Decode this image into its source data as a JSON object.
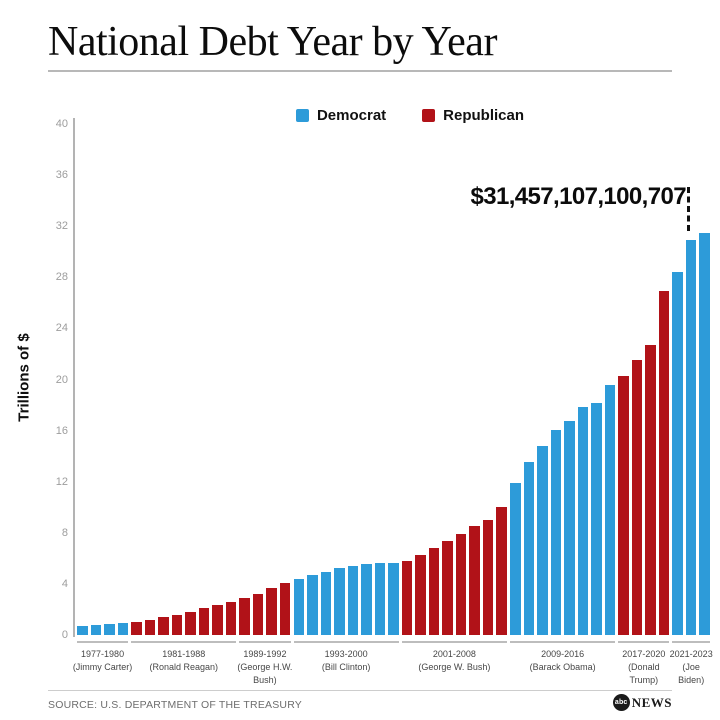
{
  "header": {
    "title": "National Debt Year by Year"
  },
  "legend": [
    {
      "label": "Democrat",
      "color": "#2d9bd9"
    },
    {
      "label": "Republican",
      "color": "#b11218"
    }
  ],
  "annotation": {
    "text": "$31,457,107,100,707"
  },
  "chart_data": {
    "type": "bar",
    "title": "National Debt Year by Year",
    "xlabel": "",
    "ylabel": "Trillions of $",
    "ylim": [
      0,
      40
    ],
    "yticks": [
      0,
      4,
      8,
      12,
      16,
      20,
      24,
      28,
      32,
      36,
      40
    ],
    "grid": false,
    "legend_position": "top",
    "annotation": "$31,457,107,100,707",
    "party_colors": {
      "Democrat": "#2d9bd9",
      "Republican": "#b11218"
    },
    "groups": [
      {
        "years": "1977-1980",
        "president": "(Jimmy Carter)",
        "party": "Democrat",
        "values": [
          0.7,
          0.77,
          0.83,
          0.91
        ]
      },
      {
        "years": "1981-1988",
        "president": "(Ronald Reagan)",
        "party": "Republican",
        "values": [
          1.0,
          1.14,
          1.38,
          1.57,
          1.82,
          2.13,
          2.35,
          2.6
        ]
      },
      {
        "years": "1989-1992",
        "president": "(George H.W.\nBush)",
        "party": "Republican",
        "values": [
          2.86,
          3.23,
          3.67,
          4.06
        ]
      },
      {
        "years": "1993-2000",
        "president": "(Bill Clinton)",
        "party": "Democrat",
        "values": [
          4.41,
          4.69,
          4.97,
          5.22,
          5.41,
          5.53,
          5.66,
          5.67
        ]
      },
      {
        "years": "2001-2008",
        "president": "(George W. Bush)",
        "party": "Republican",
        "values": [
          5.81,
          6.23,
          6.78,
          7.38,
          7.93,
          8.51,
          9.01,
          10.02
        ]
      },
      {
        "years": "2009-2016",
        "president": "(Barack Obama)",
        "party": "Democrat",
        "values": [
          11.91,
          13.56,
          14.79,
          16.07,
          16.74,
          17.82,
          18.15,
          19.57
        ]
      },
      {
        "years": "2017-2020",
        "president": "(Donald\nTrump)",
        "party": "Republican",
        "values": [
          20.24,
          21.52,
          22.72,
          26.95
        ]
      },
      {
        "years": "2021-2023",
        "president": "(Joe\nBiden)",
        "party": "Democrat",
        "values": [
          28.43,
          30.93,
          31.46
        ]
      }
    ]
  },
  "footer": {
    "source": "SOURCE: U.S. DEPARTMENT OF THE TREASURY",
    "logo_abc": "abc",
    "logo_news": "NEWS"
  }
}
